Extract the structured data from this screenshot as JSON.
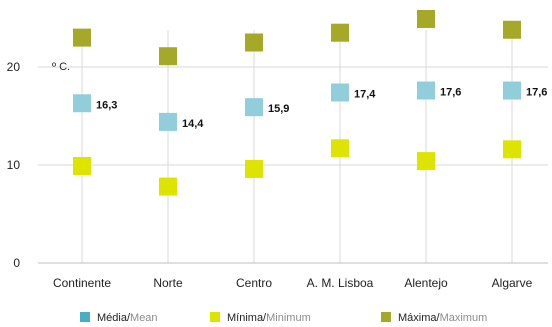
{
  "chart_data": {
    "type": "scatter",
    "title": "",
    "unit_label": "º C.",
    "categories": [
      "Continente",
      "Norte",
      "Centro",
      "A. M. Lisboa",
      "Alentejo",
      "Algarve"
    ],
    "yticks": [
      "0",
      "10",
      "20"
    ],
    "ylim": [
      0,
      25
    ],
    "grid": true,
    "legend_position": "bottom",
    "series": [
      {
        "name": "Média",
        "name_en": "Mean",
        "color": "#92cddc",
        "values": [
          16.3,
          14.4,
          15.9,
          17.4,
          17.6,
          17.6
        ],
        "data_labels": [
          "16,3",
          "14,4",
          "15,9",
          "17,4",
          "17,6",
          "17,6"
        ]
      },
      {
        "name": "Mínima",
        "name_en": "Minimum",
        "color": "#dde400",
        "values": [
          9.9,
          7.8,
          9.6,
          11.7,
          10.4,
          11.6
        ]
      },
      {
        "name": "Máxima",
        "name_en": "Maximum",
        "color": "#a6a828",
        "values": [
          23.0,
          21.1,
          22.5,
          23.5,
          24.9,
          23.8
        ]
      }
    ],
    "legend": [
      {
        "label": "Média",
        "label_en": "Mean",
        "color": "#4bacc6"
      },
      {
        "label": "Mínima",
        "label_en": "Minimum",
        "color": "#dde400"
      },
      {
        "label": "Máxima",
        "label_en": "Maximum",
        "color": "#a6a828"
      }
    ],
    "colors": {
      "grid": "#d9d9d9",
      "axis": "#bfbfbf",
      "legend_secondary_text": "#8c8c8c"
    }
  }
}
